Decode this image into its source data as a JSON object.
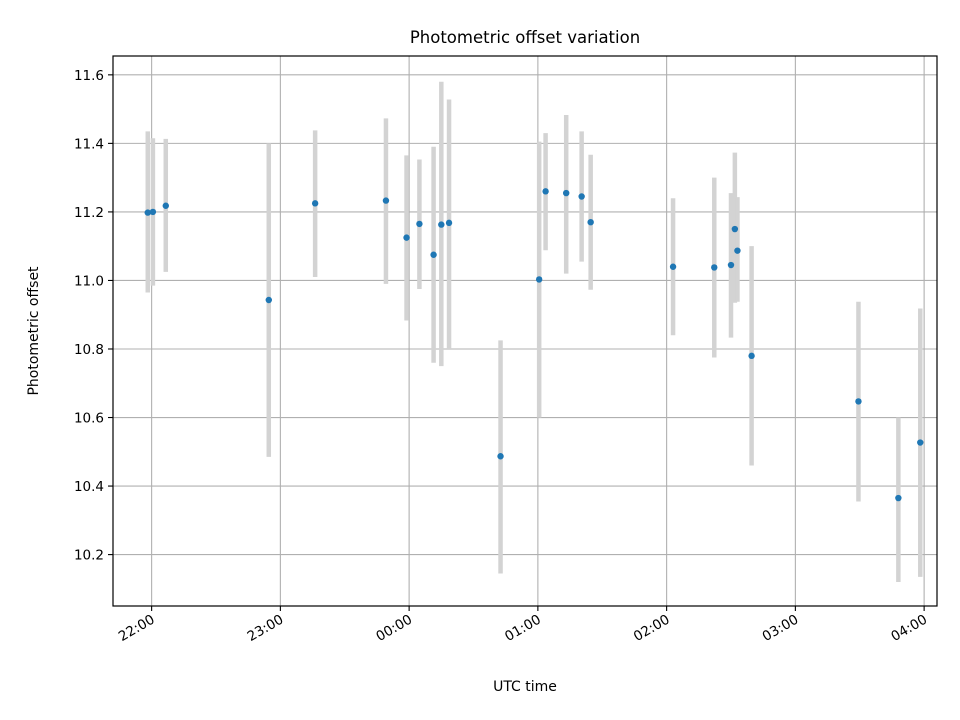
{
  "chart_data": {
    "type": "scatter",
    "title": "Photometric offset variation",
    "xlabel": "UTC time",
    "ylabel": "Photometric offset",
    "xlim": [
      -0.3,
      6.1
    ],
    "ylim": [
      10.05,
      11.655
    ],
    "grid": true,
    "x_ticks": [
      {
        "value": 0,
        "label": "22:00"
      },
      {
        "value": 1,
        "label": "23:00"
      },
      {
        "value": 2,
        "label": "00:00"
      },
      {
        "value": 3,
        "label": "01:00"
      },
      {
        "value": 4,
        "label": "02:00"
      },
      {
        "value": 5,
        "label": "03:00"
      },
      {
        "value": 6,
        "label": "04:00"
      }
    ],
    "y_ticks": [
      {
        "value": 10.2,
        "label": "10.2"
      },
      {
        "value": 10.4,
        "label": "10.4"
      },
      {
        "value": 10.6,
        "label": "10.6"
      },
      {
        "value": 10.8,
        "label": "10.8"
      },
      {
        "value": 11.0,
        "label": "11.0"
      },
      {
        "value": 11.2,
        "label": "11.2"
      },
      {
        "value": 11.4,
        "label": "11.4"
      },
      {
        "value": 11.6,
        "label": "11.6"
      }
    ],
    "point_color": "#1f77b4",
    "errorbar_color": "#d3d3d3",
    "points": [
      {
        "x": -0.03,
        "y": 11.198,
        "ylow": 10.965,
        "yhigh": 11.435
      },
      {
        "x": 0.01,
        "y": 11.2,
        "ylow": 10.985,
        "yhigh": 11.415
      },
      {
        "x": 0.11,
        "y": 11.218,
        "ylow": 11.025,
        "yhigh": 11.413
      },
      {
        "x": 0.91,
        "y": 10.943,
        "ylow": 10.485,
        "yhigh": 11.4
      },
      {
        "x": 1.27,
        "y": 11.225,
        "ylow": 11.01,
        "yhigh": 11.438
      },
      {
        "x": 1.82,
        "y": 11.233,
        "ylow": 10.99,
        "yhigh": 11.473
      },
      {
        "x": 1.98,
        "y": 11.125,
        "ylow": 10.883,
        "yhigh": 11.365
      },
      {
        "x": 2.08,
        "y": 11.165,
        "ylow": 10.975,
        "yhigh": 11.353
      },
      {
        "x": 2.19,
        "y": 11.075,
        "ylow": 10.76,
        "yhigh": 11.39
      },
      {
        "x": 2.25,
        "y": 11.163,
        "ylow": 10.75,
        "yhigh": 11.58
      },
      {
        "x": 2.31,
        "y": 11.168,
        "ylow": 10.8,
        "yhigh": 11.528
      },
      {
        "x": 2.71,
        "y": 10.487,
        "ylow": 10.145,
        "yhigh": 10.825
      },
      {
        "x": 3.01,
        "y": 11.003,
        "ylow": 10.6,
        "yhigh": 11.405
      },
      {
        "x": 3.06,
        "y": 11.26,
        "ylow": 11.088,
        "yhigh": 11.43
      },
      {
        "x": 3.22,
        "y": 11.255,
        "ylow": 11.02,
        "yhigh": 11.483
      },
      {
        "x": 3.34,
        "y": 11.245,
        "ylow": 11.055,
        "yhigh": 11.435
      },
      {
        "x": 3.41,
        "y": 11.17,
        "ylow": 10.973,
        "yhigh": 11.367
      },
      {
        "x": 4.05,
        "y": 11.04,
        "ylow": 10.84,
        "yhigh": 11.24
      },
      {
        "x": 4.37,
        "y": 11.038,
        "ylow": 10.775,
        "yhigh": 11.3
      },
      {
        "x": 4.5,
        "y": 11.045,
        "ylow": 10.833,
        "yhigh": 11.255
      },
      {
        "x": 4.53,
        "y": 11.15,
        "ylow": 10.935,
        "yhigh": 11.373
      },
      {
        "x": 4.55,
        "y": 11.087,
        "ylow": 10.938,
        "yhigh": 11.243
      },
      {
        "x": 4.66,
        "y": 10.78,
        "ylow": 10.46,
        "yhigh": 11.1
      },
      {
        "x": 5.49,
        "y": 10.647,
        "ylow": 10.355,
        "yhigh": 10.938
      },
      {
        "x": 5.8,
        "y": 10.365,
        "ylow": 10.12,
        "yhigh": 10.6
      },
      {
        "x": 5.97,
        "y": 10.527,
        "ylow": 10.135,
        "yhigh": 10.918
      }
    ]
  }
}
